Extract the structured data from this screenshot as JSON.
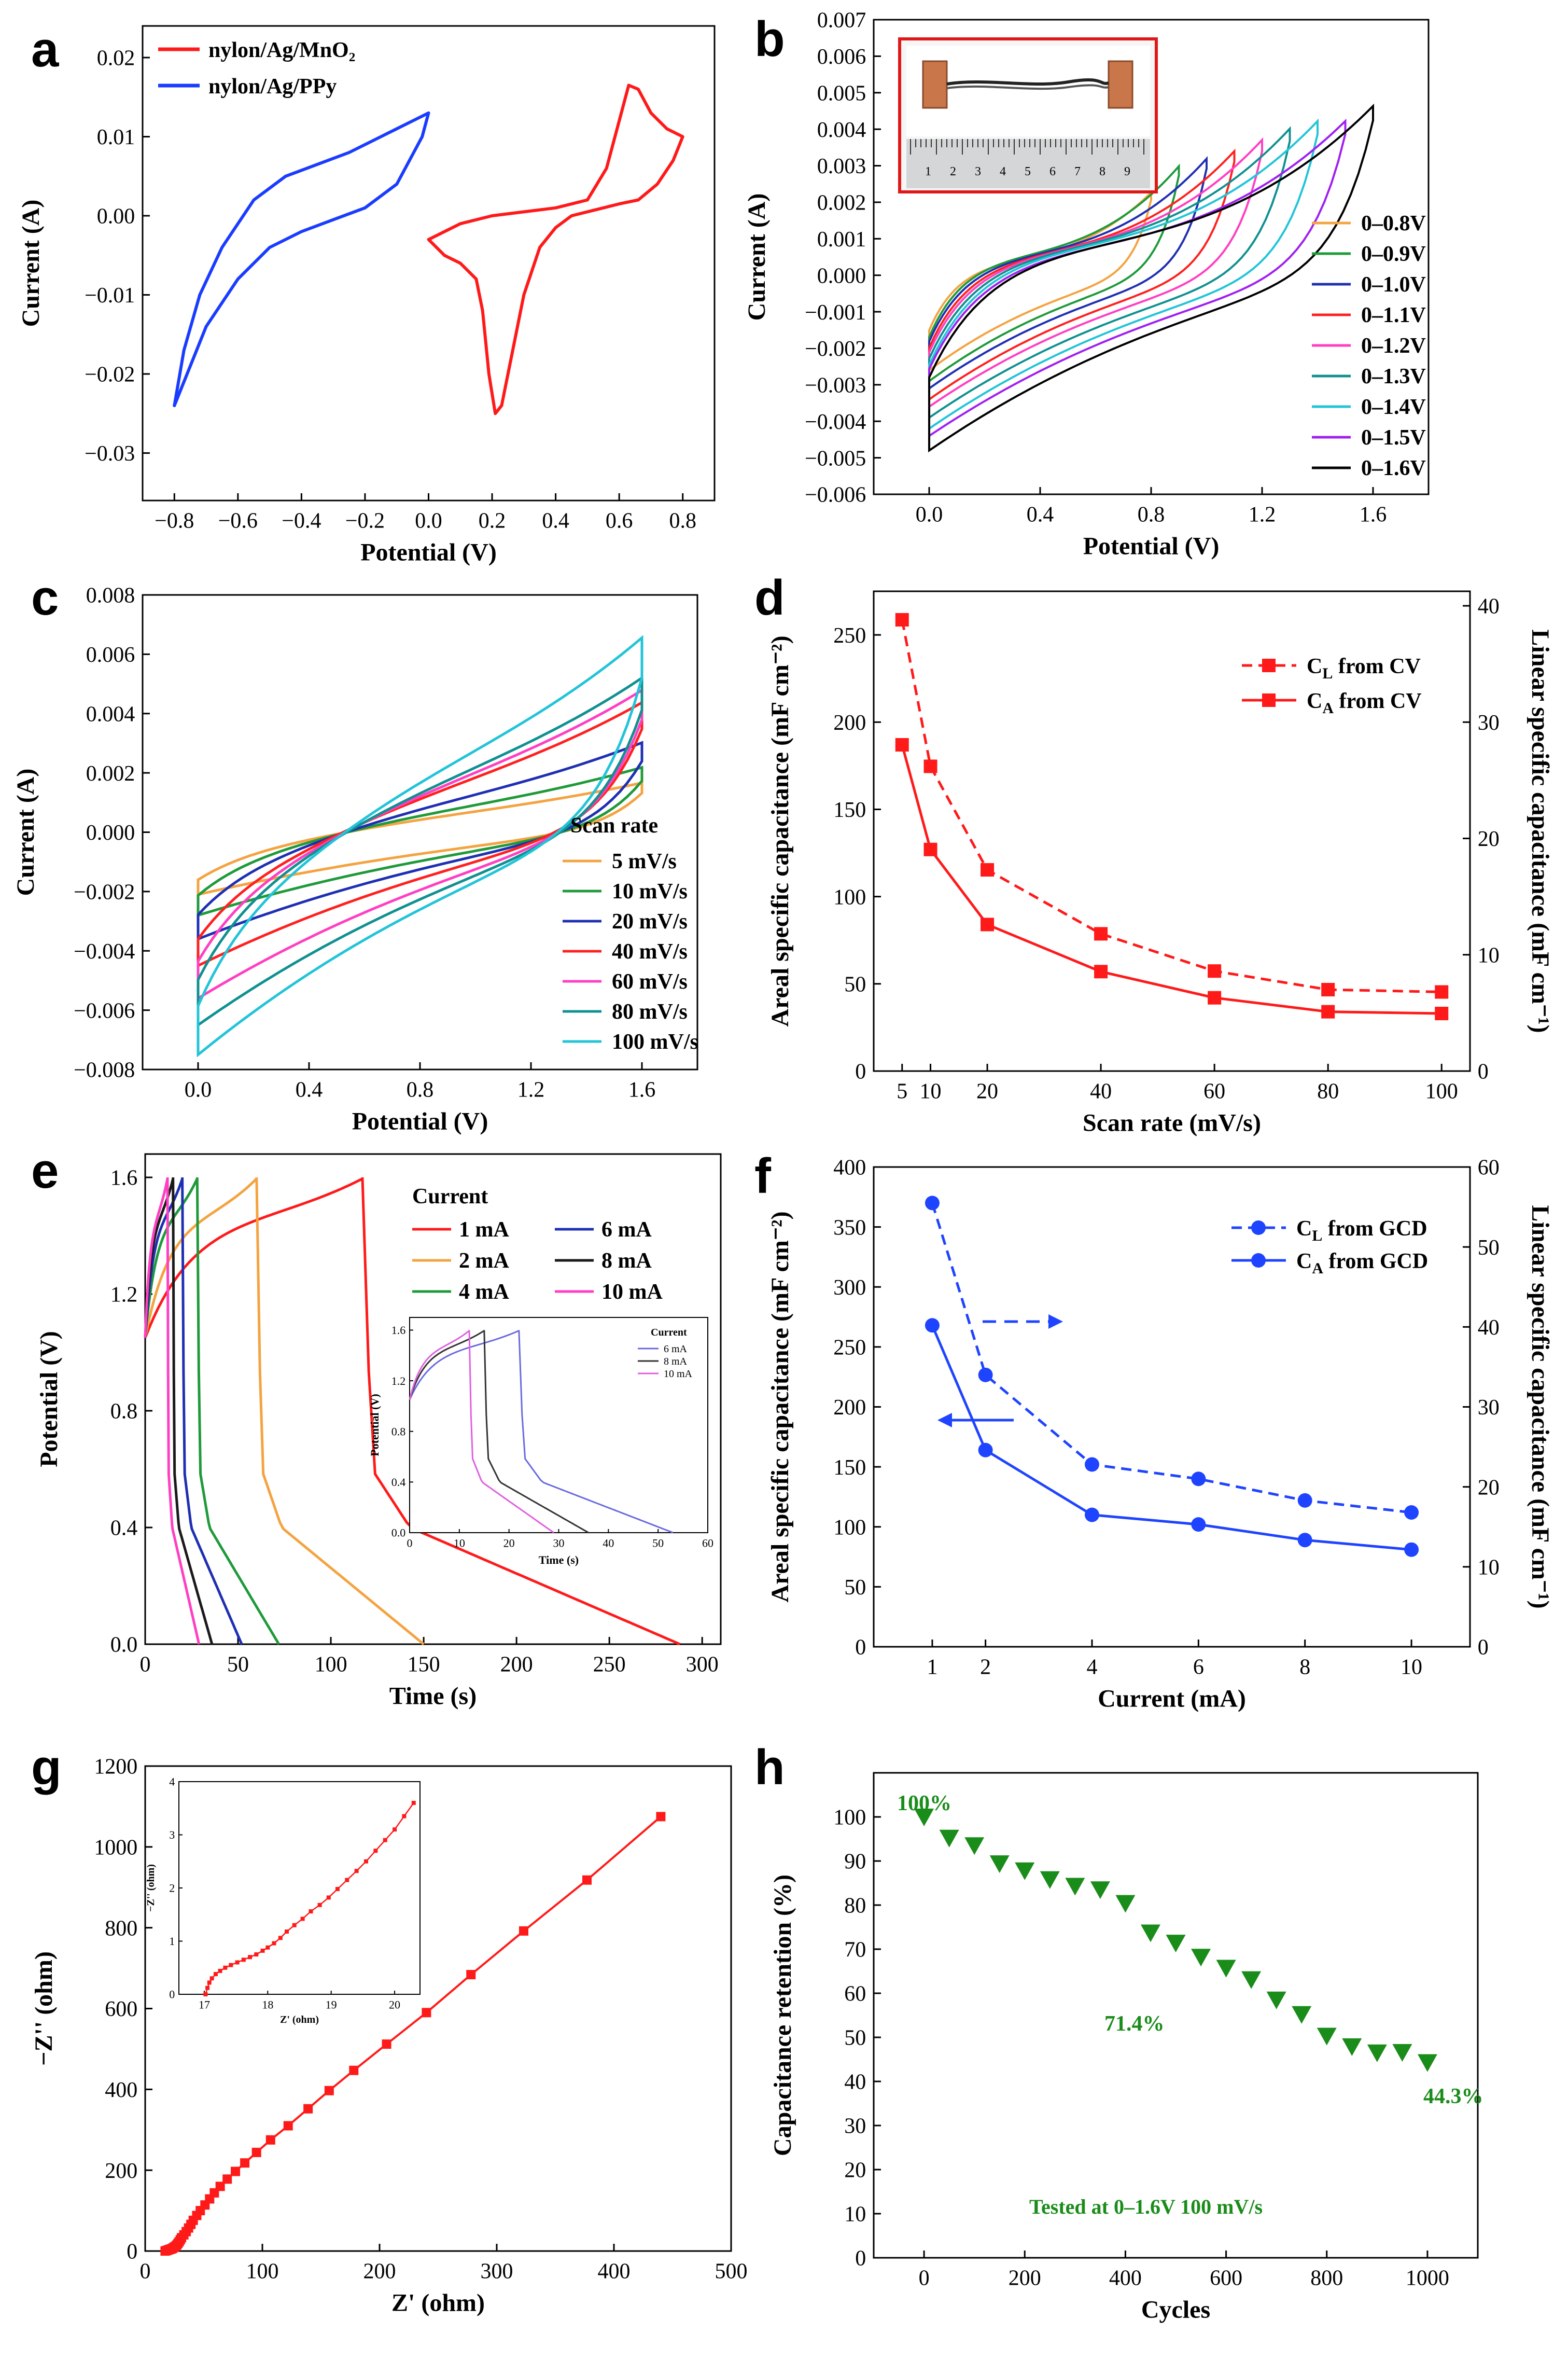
{
  "chart_data": [
    {
      "id": "a",
      "panel": "a",
      "type": "line",
      "xlabel": "Potential (V)",
      "ylabel": "Current (A)",
      "xlim": [
        -0.9,
        0.9
      ],
      "ylim": [
        -0.036,
        0.024
      ],
      "xticks": [
        -0.8,
        -0.6,
        -0.4,
        -0.2,
        0.0,
        0.2,
        0.4,
        0.6,
        0.8
      ],
      "xtick_labels": [
        "−0.8",
        "−0.6",
        "−0.4",
        "−0.2",
        "0.0",
        "0.2",
        "0.4",
        "0.6",
        "0.8"
      ],
      "yticks": [
        0.02,
        0.01,
        0.0,
        -0.01,
        -0.02,
        -0.03
      ],
      "ytick_labels": [
        "0.02",
        "0.01",
        "0.00",
        "−0.01",
        "−0.02",
        "−0.03"
      ],
      "legend_position": "top-left",
      "series": [
        {
          "name": "nylon/Ag/MnO₂",
          "color": "#ff1a1a",
          "closed": true,
          "x": [
            0.0,
            0.1,
            0.2,
            0.3,
            0.4,
            0.5,
            0.56,
            0.6,
            0.63,
            0.66,
            0.7,
            0.75,
            0.8,
            0.77,
            0.72,
            0.66,
            0.6,
            0.55,
            0.5,
            0.45,
            0.4,
            0.35,
            0.3,
            0.26,
            0.23,
            0.21,
            0.19,
            0.17,
            0.15,
            0.1,
            0.05,
            0.0
          ],
          "y": [
            -0.003,
            -0.001,
            0.0,
            0.0005,
            0.001,
            0.002,
            0.006,
            0.012,
            0.0165,
            0.016,
            0.013,
            0.011,
            0.01,
            0.007,
            0.004,
            0.002,
            0.0015,
            0.001,
            0.0005,
            0.0,
            -0.0015,
            -0.004,
            -0.01,
            -0.018,
            -0.024,
            -0.025,
            -0.02,
            -0.012,
            -0.008,
            -0.006,
            -0.005,
            -0.003
          ]
        },
        {
          "name": "nylon/Ag/PPy",
          "color": "#1a3cff",
          "closed": true,
          "x": [
            -0.8,
            -0.7,
            -0.6,
            -0.5,
            -0.4,
            -0.3,
            -0.2,
            -0.1,
            -0.02,
            0.0,
            -0.05,
            -0.15,
            -0.25,
            -0.35,
            -0.45,
            -0.55,
            -0.65,
            -0.72,
            -0.77,
            -0.8
          ],
          "y": [
            -0.024,
            -0.014,
            -0.008,
            -0.004,
            -0.002,
            -0.0005,
            0.001,
            0.004,
            0.01,
            0.013,
            0.012,
            0.01,
            0.008,
            0.0065,
            0.005,
            0.002,
            -0.004,
            -0.01,
            -0.017,
            -0.024
          ]
        }
      ]
    },
    {
      "id": "b",
      "panel": "b",
      "type": "line",
      "xlabel": "Potential (V)",
      "ylabel": "Current (A)",
      "xlim": [
        -0.2,
        1.8
      ],
      "ylim": [
        -0.006,
        0.007
      ],
      "xticks": [
        0.0,
        0.4,
        0.8,
        1.2,
        1.6
      ],
      "xtick_labels": [
        "0.0",
        "0.4",
        "0.8",
        "1.2",
        "1.6"
      ],
      "yticks": [
        -0.006,
        -0.005,
        -0.004,
        -0.003,
        -0.002,
        -0.001,
        0.0,
        0.001,
        0.002,
        0.003,
        0.004,
        0.005,
        0.006,
        0.007
      ],
      "ytick_labels": [
        "−0.006",
        "−0.005",
        "−0.004",
        "−0.003",
        "−0.002",
        "−0.001",
        "0.000",
        "0.001",
        "0.002",
        "0.003",
        "0.004",
        "0.005",
        "0.006",
        "0.007"
      ],
      "legend_position": "right",
      "inset_caption": "photo of nylon/Ag device with ruler",
      "ruler_labels": [
        "1",
        "2",
        "3",
        "4",
        "5",
        "6",
        "7",
        "8",
        "9"
      ],
      "series": [
        {
          "name": "0–0.8V",
          "color": "#f4a340",
          "vmax": 0.8,
          "imax": 0.0022,
          "imin": -0.0026
        },
        {
          "name": "0–0.9V",
          "color": "#1f9a3a",
          "vmax": 0.9,
          "imax": 0.0029,
          "imin": -0.0029
        },
        {
          "name": "0–1.0V",
          "color": "#1f2fb3",
          "vmax": 1.0,
          "imax": 0.0031,
          "imin": -0.0031
        },
        {
          "name": "0–1.1V",
          "color": "#ff2020",
          "vmax": 1.1,
          "imax": 0.0033,
          "imin": -0.0034
        },
        {
          "name": "0–1.2V",
          "color": "#ff3fc2",
          "vmax": 1.2,
          "imax": 0.0036,
          "imin": -0.0036
        },
        {
          "name": "0–1.3V",
          "color": "#109090",
          "vmax": 1.3,
          "imax": 0.0039,
          "imin": -0.0039
        },
        {
          "name": "0–1.4V",
          "color": "#22c4d8",
          "vmax": 1.4,
          "imax": 0.0041,
          "imin": -0.0042
        },
        {
          "name": "0–1.5V",
          "color": "#a020f0",
          "vmax": 1.5,
          "imax": 0.0041,
          "imin": -0.0044
        },
        {
          "name": "0–1.6V",
          "color": "#000000",
          "vmax": 1.6,
          "imax": 0.0045,
          "imin": -0.0048
        }
      ]
    },
    {
      "id": "c",
      "panel": "c",
      "type": "line",
      "xlabel": "Potential (V)",
      "ylabel": "Current (A)",
      "xlim": [
        -0.2,
        1.8
      ],
      "ylim": [
        -0.008,
        0.008
      ],
      "xticks": [
        0.0,
        0.4,
        0.8,
        1.2,
        1.6
      ],
      "xtick_labels": [
        "0.0",
        "0.4",
        "0.8",
        "1.2",
        "1.6"
      ],
      "yticks": [
        -0.008,
        -0.006,
        -0.004,
        -0.002,
        0.0,
        0.002,
        0.004,
        0.006,
        0.008
      ],
      "ytick_labels": [
        "−0.008",
        "−0.006",
        "−0.004",
        "−0.002",
        "0.000",
        "0.002",
        "0.004",
        "0.006",
        "0.008"
      ],
      "legend_title": "Scan rate",
      "legend_position": "right",
      "series": [
        {
          "name": "5  mV/s",
          "color": "#f4a340",
          "imax": 0.0016,
          "imin": -0.0021
        },
        {
          "name": "10 mV/s",
          "color": "#1f9a3a",
          "imax": 0.0021,
          "imin": -0.0028
        },
        {
          "name": "20 mV/s",
          "color": "#1f2fb3",
          "imax": 0.0029,
          "imin": -0.0036
        },
        {
          "name": "40 mV/s",
          "color": "#ff2020",
          "imax": 0.0042,
          "imin": -0.0045
        },
        {
          "name": "60 mV/s",
          "color": "#ff3fc2",
          "imax": 0.0046,
          "imin": -0.0056
        },
        {
          "name": "80 mV/s",
          "color": "#109090",
          "imax": 0.005,
          "imin": -0.0065
        },
        {
          "name": "100 mV/s",
          "color": "#22c4d8",
          "imax": 0.0063,
          "imin": -0.0075
        }
      ]
    },
    {
      "id": "d",
      "panel": "d",
      "type": "line",
      "xlabel": "Scan rate (mV/s)",
      "ylabel": "Areal specific capacitance (mF cm⁻²)",
      "ylabel_right": "Linear specific capacitance (mF cm⁻¹)",
      "xlim": [
        0,
        105
      ],
      "ylim": [
        0,
        275
      ],
      "ylim_right": [
        0,
        41.25
      ],
      "xticks": [
        5,
        10,
        20,
        40,
        60,
        80,
        100
      ],
      "xtick_labels": [
        "5",
        "10",
        "20",
        "40",
        "60",
        "80",
        "100"
      ],
      "yticks": [
        0,
        50,
        100,
        150,
        200,
        250
      ],
      "ytick_labels": [
        "0",
        "50",
        "100",
        "150",
        "200",
        "250"
      ],
      "yticks_right": [
        0,
        10,
        20,
        30,
        40
      ],
      "ytick_labels_right": [
        "0",
        "10",
        "20",
        "30",
        "40"
      ],
      "legend_position": "top-right",
      "x": [
        5,
        10,
        20,
        40,
        60,
        80,
        100
      ],
      "series": [
        {
          "name": "C_L from CV",
          "legend_main": "C",
          "legend_sub": "L",
          "legend_rest": " from CV",
          "color": "#ff1a1a",
          "dashed": true,
          "axis": "right",
          "values": [
            38.8,
            26.2,
            17.3,
            11.8,
            8.6,
            7.0,
            6.8
          ]
        },
        {
          "name": "C_A from CV",
          "legend_main": "C",
          "legend_sub": "A",
          "legend_rest": " from CV",
          "color": "#ff1a1a",
          "dashed": false,
          "axis": "left",
          "values": [
            187,
            127,
            84,
            57,
            42,
            34,
            33
          ]
        }
      ]
    },
    {
      "id": "e",
      "panel": "e",
      "type": "line",
      "xlabel": "Time (s)",
      "ylabel": "Potential (V)",
      "xlim": [
        0,
        310
      ],
      "ylim": [
        0,
        1.68
      ],
      "xticks": [
        0,
        50,
        100,
        150,
        200,
        250,
        300
      ],
      "xtick_labels": [
        "0",
        "50",
        "100",
        "150",
        "200",
        "250",
        "300"
      ],
      "yticks": [
        0.0,
        0.4,
        0.8,
        1.2,
        1.6
      ],
      "ytick_labels": [
        "0.0",
        "0.4",
        "0.8",
        "1.2",
        "1.6"
      ],
      "legend_title": "Current",
      "legend_position": "top-right",
      "series": [
        {
          "name": "1  mA",
          "color": "#ff1a1a",
          "tc": 117,
          "td": 288
        },
        {
          "name": "2  mA",
          "color": "#f4a340",
          "tc": 60,
          "td": 150
        },
        {
          "name": "4  mA",
          "color": "#1f9a3a",
          "tc": 28,
          "td": 72
        },
        {
          "name": "6  mA",
          "color": "#1f2fb3",
          "tc": 20,
          "td": 52
        },
        {
          "name": "8  mA",
          "color": "#1a1a1a",
          "tc": 15,
          "td": 36
        },
        {
          "name": "10  mA",
          "color": "#ff3fc2",
          "tc": 12,
          "td": 29
        }
      ],
      "inset": {
        "xlabel": "Time (s)",
        "ylabel": "Potential (V)",
        "xlim": [
          0,
          60
        ],
        "ylim": [
          0,
          1.7
        ],
        "xticks": [
          0,
          10,
          20,
          30,
          40,
          50,
          60
        ],
        "xtick_labels": [
          "0",
          "10",
          "20",
          "30",
          "40",
          "50",
          "60"
        ],
        "yticks": [
          0.0,
          0.4,
          0.8,
          1.2,
          1.6
        ],
        "ytick_labels": [
          "0.0",
          "0.4",
          "0.8",
          "1.2",
          "1.6"
        ],
        "legend_title": "Current",
        "series": [
          {
            "name": "6  mA",
            "color": "#6a6ae0",
            "tc": 22,
            "td": 53
          },
          {
            "name": "8  mA",
            "color": "#333333",
            "tc": 15,
            "td": 36
          },
          {
            "name": "10  mA",
            "color": "#e060e0",
            "tc": 12,
            "td": 29
          }
        ]
      }
    },
    {
      "id": "f",
      "panel": "f",
      "type": "line",
      "xlabel": "Current (mA)",
      "ylabel": "Areal specific capacitance (mF cm⁻²)",
      "ylabel_right": "Linear specific capacitance (mF cm⁻¹)",
      "xlim": [
        -0.1,
        11.1
      ],
      "ylim": [
        0,
        400
      ],
      "ylim_right": [
        0,
        60
      ],
      "xticks": [
        1,
        2,
        4,
        6,
        8,
        10
      ],
      "xtick_labels": [
        "1",
        "2",
        "4",
        "6",
        "8",
        "10"
      ],
      "yticks": [
        0,
        50,
        100,
        150,
        200,
        250,
        300,
        350,
        400
      ],
      "ytick_labels": [
        "0",
        "50",
        "100",
        "150",
        "200",
        "250",
        "300",
        "350",
        "400"
      ],
      "yticks_right": [
        0,
        10,
        20,
        30,
        40,
        50,
        60
      ],
      "ytick_labels_right": [
        "0",
        "10",
        "20",
        "30",
        "40",
        "50",
        "60"
      ],
      "legend_position": "top-right",
      "x": [
        1,
        2,
        4,
        6,
        8,
        10
      ],
      "series": [
        {
          "name": "C_L from GCD",
          "legend_main": "C",
          "legend_sub": "L",
          "legend_rest": " from GCD",
          "color": "#1f44ff",
          "dashed": true,
          "axis": "right",
          "values": [
            55.5,
            34.0,
            22.8,
            21.0,
            18.3,
            16.8
          ]
        },
        {
          "name": "C_A from GCD",
          "legend_main": "C",
          "legend_sub": "A",
          "legend_rest": " from GCD",
          "color": "#1f44ff",
          "dashed": false,
          "axis": "left",
          "values": [
            268,
            164,
            110,
            102,
            89,
            81
          ]
        }
      ]
    },
    {
      "id": "g",
      "panel": "g",
      "type": "scatter",
      "xlabel": "Z' (ohm)",
      "ylabel": "−Z'' (ohm)",
      "xlim": [
        0,
        500
      ],
      "ylim": [
        0,
        1200
      ],
      "xticks": [
        0,
        100,
        200,
        300,
        400,
        500
      ],
      "xtick_labels": [
        "0",
        "100",
        "200",
        "300",
        "400",
        "500"
      ],
      "yticks": [
        0,
        200,
        400,
        600,
        800,
        1000,
        1200
      ],
      "ytick_labels": [
        "0",
        "200",
        "400",
        "600",
        "800",
        "1000",
        "1200"
      ],
      "color": "#ff1a1a",
      "x": [
        17,
        18,
        19,
        20,
        21,
        22,
        23,
        24,
        25,
        26,
        27,
        28,
        29,
        30,
        31,
        33,
        35,
        37,
        39,
        41,
        44,
        47,
        51,
        55,
        59,
        64,
        70,
        77,
        85,
        95,
        107,
        122,
        139,
        157,
        178,
        206,
        240,
        278,
        323,
        377,
        440
      ],
      "y": [
        0,
        1,
        2,
        3,
        4,
        5,
        6,
        8,
        10,
        12,
        15,
        19,
        23,
        28,
        33,
        40,
        48,
        57,
        66,
        76,
        88,
        100,
        114,
        129,
        144,
        160,
        178,
        197,
        218,
        244,
        275,
        310,
        352,
        397,
        447,
        512,
        590,
        684,
        792,
        918,
        1075
      ],
      "inset": {
        "xlabel": "Z' (ohm)",
        "ylabel": "−Z'' (ohm)",
        "xlim": [
          16.6,
          20.4
        ],
        "ylim": [
          0,
          4
        ],
        "xticks": [
          17,
          18,
          19,
          20
        ],
        "xtick_labels": [
          "17",
          "18",
          "19",
          "20"
        ],
        "yticks": [
          0,
          1,
          2,
          3,
          4
        ],
        "ytick_labels": [
          "0",
          "1",
          "2",
          "3",
          "4"
        ],
        "x": [
          17.02,
          17.05,
          17.08,
          17.12,
          17.18,
          17.25,
          17.33,
          17.42,
          17.52,
          17.62,
          17.72,
          17.82,
          17.92,
          18.0,
          18.1,
          18.2,
          18.3,
          18.42,
          18.55,
          18.68,
          18.82,
          18.96,
          19.1,
          19.25,
          19.4,
          19.55,
          19.7,
          19.85,
          20.0,
          20.15,
          20.3
        ],
        "y": [
          0.0,
          0.12,
          0.22,
          0.3,
          0.38,
          0.44,
          0.5,
          0.55,
          0.6,
          0.65,
          0.7,
          0.75,
          0.82,
          0.88,
          0.96,
          1.06,
          1.18,
          1.3,
          1.42,
          1.56,
          1.68,
          1.82,
          1.98,
          2.15,
          2.32,
          2.5,
          2.7,
          2.9,
          3.1,
          3.35,
          3.6
        ]
      }
    },
    {
      "id": "h",
      "panel": "h",
      "type": "scatter",
      "xlabel": "Cycles",
      "ylabel": "Capacitance retention (%)",
      "xlim": [
        -100,
        1100
      ],
      "ylim": [
        0,
        110
      ],
      "xticks": [
        0,
        200,
        400,
        600,
        800,
        1000
      ],
      "xtick_labels": [
        "0",
        "200",
        "400",
        "600",
        "800",
        "1000"
      ],
      "yticks": [
        0,
        10,
        20,
        30,
        40,
        50,
        60,
        70,
        80,
        90,
        100
      ],
      "ytick_labels": [
        "0",
        "10",
        "20",
        "30",
        "40",
        "50",
        "60",
        "70",
        "80",
        "90",
        "100"
      ],
      "color": "#1a8c1a",
      "x": [
        0,
        50,
        100,
        150,
        200,
        250,
        300,
        350,
        400,
        450,
        500,
        550,
        600,
        650,
        700,
        750,
        800,
        850,
        900,
        950,
        1000
      ],
      "y": [
        100,
        95.2,
        93.5,
        89.4,
        87.8,
        85.8,
        84.3,
        83.5,
        80.4,
        73.7,
        71.4,
        68.2,
        65.7,
        63.1,
        58.5,
        55.2,
        50.3,
        47.9,
        46.5,
        46.6,
        44.3
      ],
      "annotations": [
        "100%",
        "71.4%",
        "44.3%",
        "Tested at 0–1.6V 100 mV/s"
      ]
    }
  ]
}
